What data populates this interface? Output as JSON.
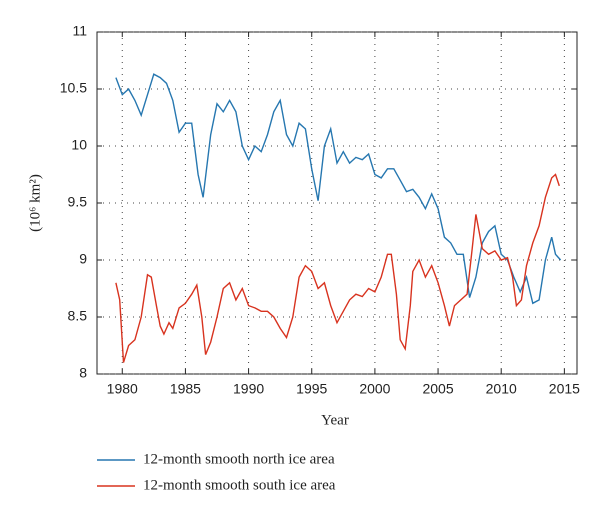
{
  "chart_data": {
    "type": "line",
    "xlabel": "Year",
    "ylabel": "(10⁶ km²)",
    "xlim": [
      1978,
      2016
    ],
    "ylim": [
      8,
      11
    ],
    "xticks": [
      1980,
      1985,
      1990,
      1995,
      2000,
      2005,
      2010,
      2015
    ],
    "yticks": [
      8,
      8.5,
      9,
      9.5,
      10,
      10.5,
      11
    ],
    "grid": true,
    "legend": "bottom",
    "series": [
      {
        "name": "12-month smooth north ice area",
        "color": "#2677b0",
        "x": [
          1979.5,
          1980,
          1980.5,
          1981,
          1981.5,
          1982,
          1982.5,
          1983,
          1983.5,
          1984,
          1984.5,
          1985,
          1985.5,
          1986,
          1986.4,
          1987,
          1987.5,
          1988,
          1988.5,
          1989,
          1989.5,
          1990,
          1990.5,
          1991,
          1991.5,
          1992,
          1992.5,
          1993,
          1993.5,
          1994,
          1994.5,
          1995,
          1995.5,
          1996,
          1996.5,
          1997,
          1997.5,
          1998,
          1998.5,
          1999,
          1999.5,
          2000,
          2000.5,
          2001,
          2001.5,
          2002,
          2002.5,
          2003,
          2003.5,
          2004,
          2004.5,
          2005,
          2005.5,
          2006,
          2006.5,
          2007,
          2007.5,
          2008,
          2008.5,
          2009,
          2009.5,
          2010,
          2010.5,
          2011,
          2011.5,
          2012,
          2012.5,
          2013,
          2013.5,
          2014,
          2014.3,
          2014.7
        ],
        "values": [
          10.6,
          10.45,
          10.5,
          10.4,
          10.27,
          10.45,
          10.63,
          10.6,
          10.55,
          10.4,
          10.12,
          10.2,
          10.2,
          9.75,
          9.55,
          10.1,
          10.37,
          10.3,
          10.4,
          10.3,
          10.0,
          9.88,
          10.0,
          9.95,
          10.1,
          10.3,
          10.4,
          10.1,
          10.0,
          10.2,
          10.15,
          9.8,
          9.52,
          10.0,
          10.15,
          9.85,
          9.95,
          9.85,
          9.9,
          9.88,
          9.93,
          9.75,
          9.72,
          9.8,
          9.8,
          9.7,
          9.6,
          9.62,
          9.55,
          9.45,
          9.58,
          9.45,
          9.2,
          9.15,
          9.05,
          9.05,
          8.67,
          8.85,
          9.15,
          9.25,
          9.3,
          9.05,
          9.0,
          8.85,
          8.72,
          8.85,
          8.62,
          8.65,
          9.0,
          9.2,
          9.05,
          9.0
        ]
      },
      {
        "name": "12-month smooth south ice area",
        "color": "#d8331f",
        "x": [
          1979.5,
          1979.8,
          1980.1,
          1980.5,
          1981,
          1981.5,
          1982,
          1982.3,
          1982.7,
          1983,
          1983.3,
          1983.7,
          1984,
          1984.5,
          1985,
          1985.5,
          1985.9,
          1986.3,
          1986.6,
          1987,
          1987.5,
          1988,
          1988.5,
          1989,
          1989.5,
          1990,
          1990.5,
          1991,
          1991.5,
          1992,
          1992.5,
          1993,
          1993.5,
          1994,
          1994.5,
          1995,
          1995.5,
          1996,
          1996.5,
          1997,
          1997.5,
          1998,
          1998.5,
          1999,
          1999.5,
          2000,
          2000.5,
          2001,
          2001.3,
          2001.7,
          2002,
          2002.4,
          2002.8,
          2003,
          2003.5,
          2004,
          2004.5,
          2005,
          2005.5,
          2005.9,
          2006.3,
          2006.8,
          2007.3,
          2007.7,
          2008,
          2008.5,
          2009,
          2009.5,
          2010,
          2010.5,
          2010.9,
          2011.2,
          2011.6,
          2012,
          2012.5,
          2013,
          2013.5,
          2014,
          2014.3,
          2014.6
        ],
        "values": [
          8.8,
          8.65,
          8.1,
          8.25,
          8.3,
          8.5,
          8.87,
          8.85,
          8.6,
          8.42,
          8.35,
          8.45,
          8.4,
          8.58,
          8.62,
          8.7,
          8.78,
          8.5,
          8.17,
          8.28,
          8.5,
          8.75,
          8.8,
          8.65,
          8.75,
          8.6,
          8.58,
          8.55,
          8.55,
          8.5,
          8.4,
          8.32,
          8.5,
          8.85,
          8.95,
          8.9,
          8.75,
          8.8,
          8.6,
          8.45,
          8.55,
          8.65,
          8.7,
          8.68,
          8.75,
          8.72,
          8.85,
          9.05,
          9.05,
          8.7,
          8.3,
          8.22,
          8.6,
          8.9,
          9.0,
          8.85,
          8.95,
          8.8,
          8.6,
          8.42,
          8.6,
          8.65,
          8.7,
          9.1,
          9.4,
          9.1,
          9.05,
          9.08,
          9.0,
          9.02,
          8.85,
          8.6,
          8.65,
          8.95,
          9.15,
          9.3,
          9.55,
          9.72,
          9.75,
          9.65
        ]
      }
    ]
  }
}
